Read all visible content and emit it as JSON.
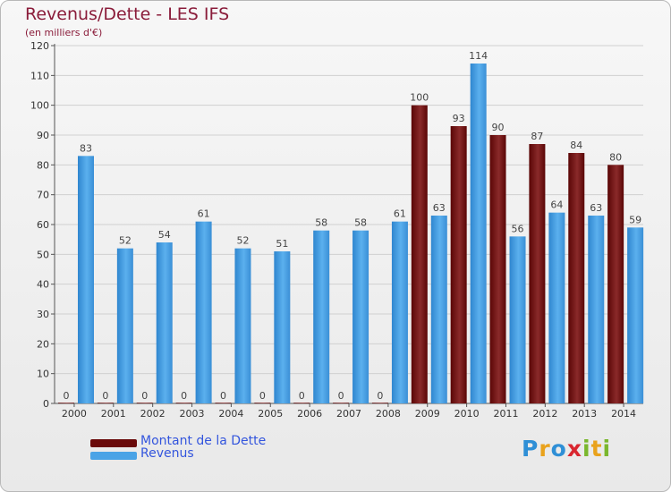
{
  "header": {
    "title": "Revenus/Dette - LES IFS",
    "subtitle": "(en milliers d'€)"
  },
  "legend": [
    {
      "label": "Montant de la Dette",
      "color": "#7a0f0f"
    },
    {
      "label": "Revenus",
      "color": "#4aa3e6"
    }
  ],
  "logo": {
    "text": "Proxiti",
    "letters": [
      {
        "ch": "P",
        "color": "#2f8fd6"
      },
      {
        "ch": "r",
        "color": "#e9a21c"
      },
      {
        "ch": "o",
        "color": "#2f8fd6"
      },
      {
        "ch": "x",
        "color": "#d9262f"
      },
      {
        "ch": "i",
        "color": "#7ab72d"
      },
      {
        "ch": "t",
        "color": "#e9a21c"
      },
      {
        "ch": "i",
        "color": "#7ab72d"
      }
    ]
  },
  "chart_data": {
    "type": "bar",
    "title": "Revenus/Dette - LES IFS",
    "subtitle": "(en milliers d'€)",
    "categories": [
      "2000",
      "2001",
      "2002",
      "2003",
      "2004",
      "2005",
      "2006",
      "2007",
      "2008",
      "2009",
      "2010",
      "2011",
      "2012",
      "2013",
      "2014"
    ],
    "series": [
      {
        "name": "Montant de la Dette",
        "color": "#7a0f0f",
        "values": [
          0,
          0,
          0,
          0,
          0,
          0,
          0,
          0,
          0,
          100,
          93,
          90,
          87,
          84,
          80
        ]
      },
      {
        "name": "Revenus",
        "color": "#4aa3e6",
        "values": [
          83,
          52,
          54,
          61,
          52,
          51,
          58,
          58,
          61,
          63,
          114,
          56,
          64,
          63,
          59
        ]
      }
    ],
    "ylim": [
      0,
      120
    ],
    "yticks": [
      0,
      10,
      20,
      30,
      40,
      50,
      60,
      70,
      80,
      90,
      100,
      110,
      120
    ],
    "grid": true,
    "legend_position": "bottom-left"
  }
}
